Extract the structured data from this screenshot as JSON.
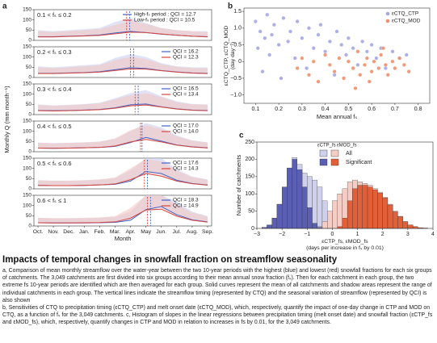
{
  "chart_data": [
    {
      "type": "line-panels",
      "label": "a",
      "ylabel": "Monthly Q (mm month⁻¹)",
      "xlabel": "Month",
      "categories": [
        "Oct.",
        "Nov.",
        "Dec.",
        "Jan.",
        "Feb.",
        "Mar.",
        "Apr.",
        "May",
        "Jun.",
        "Jul.",
        "Aug.",
        "Sep."
      ],
      "ylim": [
        0,
        150
      ],
      "yticks": [
        0,
        50,
        100,
        150
      ],
      "panels": [
        {
          "range": "0.1 < fₛ ≤ 0.2",
          "series": [
            {
              "label": "High-fₛ period : QCI = 12.7",
              "color": "#3f64c8",
              "band_color": "#c9d0ee",
              "values": [
                18,
                18,
                20,
                22,
                26,
                36,
                44,
                38,
                30,
                25,
                20,
                18
              ],
              "upper": [
                50,
                45,
                50,
                55,
                60,
                90,
                110,
                85,
                60,
                50,
                45,
                45
              ],
              "timing": 5.95
            },
            {
              "label": "Low-fₛ period : QCI = 10.5",
              "color": "#d6473f",
              "band_color": "#f3c6c2",
              "values": [
                17,
                17,
                19,
                21,
                24,
                32,
                40,
                38,
                31,
                25,
                20,
                17
              ],
              "upper": [
                45,
                40,
                45,
                50,
                55,
                75,
                95,
                80,
                60,
                50,
                45,
                40
              ],
              "timing": 5.75
            }
          ]
        },
        {
          "range": "0.2 < fₛ ≤ 0.3",
          "series": [
            {
              "label": "QCI = 16.2",
              "color": "#3f64c8",
              "band_color": "#c9d0ee",
              "values": [
                20,
                20,
                22,
                24,
                28,
                38,
                48,
                44,
                34,
                27,
                22,
                20
              ],
              "upper": [
                55,
                50,
                55,
                60,
                65,
                95,
                115,
                100,
                70,
                55,
                50,
                50
              ],
              "timing": 6.2
            },
            {
              "label": "QCI = 12.3",
              "color": "#d6473f",
              "band_color": "#f3c6c2",
              "values": [
                19,
                19,
                21,
                23,
                26,
                34,
                42,
                41,
                33,
                26,
                21,
                19
              ],
              "upper": [
                50,
                45,
                50,
                55,
                60,
                85,
                100,
                90,
                65,
                52,
                46,
                45
              ],
              "timing": 6.0
            }
          ]
        },
        {
          "range": "0.3 < fₛ ≤ 0.4",
          "series": [
            {
              "label": "QCI = 16.5",
              "color": "#3f64c8",
              "band_color": "#c9d0ee",
              "values": [
                20,
                19,
                20,
                22,
                25,
                33,
                48,
                52,
                38,
                28,
                22,
                20
              ],
              "upper": [
                50,
                45,
                48,
                52,
                58,
                80,
                105,
                120,
                90,
                65,
                52,
                50
              ],
              "timing": 6.5
            },
            {
              "label": "QCI = 13.4",
              "color": "#d6473f",
              "band_color": "#f3c6c2",
              "values": [
                19,
                18,
                19,
                21,
                24,
                31,
                43,
                47,
                37,
                27,
                21,
                19
              ],
              "upper": [
                48,
                43,
                46,
                50,
                55,
                75,
                95,
                105,
                85,
                60,
                50,
                48
              ],
              "timing": 6.3
            }
          ]
        },
        {
          "range": "0.4 < fₛ ≤ 0.5",
          "series": [
            {
              "label": "QCI = 17.0",
              "color": "#3f64c8",
              "band_color": "#c9d0ee",
              "values": [
                18,
                17,
                18,
                19,
                21,
                26,
                45,
                70,
                52,
                33,
                24,
                19
              ],
              "upper": [
                45,
                42,
                44,
                46,
                50,
                62,
                100,
                140,
                120,
                80,
                56,
                46
              ],
              "timing": 6.75
            },
            {
              "label": "QCI = 14.0",
              "color": "#d6473f",
              "band_color": "#f3c6c2",
              "values": [
                18,
                17,
                18,
                19,
                21,
                28,
                48,
                60,
                48,
                32,
                23,
                18
              ],
              "upper": [
                44,
                41,
                43,
                45,
                49,
                65,
                105,
                130,
                110,
                75,
                54,
                45
              ],
              "timing": 6.65
            }
          ]
        },
        {
          "range": "0.5 < fₛ ≤ 0.6",
          "series": [
            {
              "label": "QCI = 17.6",
              "color": "#3f64c8",
              "band_color": "#c9d0ee",
              "values": [
                17,
                16,
                16,
                17,
                19,
                22,
                38,
                85,
                75,
                42,
                26,
                19
              ],
              "upper": [
                42,
                40,
                40,
                42,
                46,
                52,
                90,
                150,
                150,
                95,
                60,
                46
              ],
              "timing": 7.1
            },
            {
              "label": "QCI = 14.3",
              "color": "#d6473f",
              "band_color": "#f3c6c2",
              "values": [
                17,
                16,
                16,
                17,
                19,
                24,
                45,
                75,
                62,
                38,
                25,
                18
              ],
              "upper": [
                42,
                40,
                40,
                42,
                46,
                56,
                100,
                145,
                135,
                88,
                58,
                44
              ],
              "timing": 6.9
            }
          ]
        },
        {
          "range": "0.6 < fₛ ≤ 1",
          "series": [
            {
              "label": "QCI = 18.3",
              "color": "#3f64c8",
              "band_color": "#c9d0ee",
              "values": [
                16,
                15,
                15,
                15,
                16,
                18,
                28,
                80,
                95,
                55,
                30,
                20
              ],
              "upper": [
                40,
                38,
                38,
                38,
                40,
                44,
                70,
                150,
                150,
                120,
                70,
                48
              ],
              "timing": 7.3
            },
            {
              "label": "QCI = 14.9",
              "color": "#d6473f",
              "band_color": "#f3c6c2",
              "values": [
                16,
                15,
                15,
                16,
                17,
                20,
                38,
                78,
                82,
                48,
                28,
                19
              ],
              "upper": [
                40,
                38,
                38,
                40,
                42,
                48,
                88,
                150,
                150,
                105,
                65,
                46
              ],
              "timing": 7.1
            }
          ]
        }
      ]
    },
    {
      "type": "scatter",
      "label": "b",
      "xlabel": "Mean annual fₛ",
      "ylabel": [
        "εCTQ_CTP, εCTQ_MOD",
        "(day day⁻¹)"
      ],
      "xlim": [
        0.05,
        0.85
      ],
      "xticks": [
        0.1,
        0.2,
        0.3,
        0.4,
        0.5,
        0.6,
        0.7,
        0.8
      ],
      "ylim": [
        -1.25,
        1.6
      ],
      "yticks": [
        1.5,
        {
          "value": 1,
          "label": "1.0"
        },
        0.5,
        0,
        {
          "value": -0.5,
          "label": "−0.5"
        },
        {
          "value": -1,
          "label": "−1.0"
        }
      ],
      "series": [
        {
          "name": "εCTQ_CTP",
          "color": "#a3a7e4",
          "x": [
            0.1,
            0.11,
            0.12,
            0.13,
            0.14,
            0.15,
            0.16,
            0.17,
            0.18,
            0.2,
            0.21,
            0.22,
            0.24,
            0.25,
            0.27,
            0.28,
            0.3,
            0.32,
            0.33,
            0.35,
            0.37,
            0.38,
            0.4,
            0.42,
            0.44,
            0.45,
            0.47,
            0.49,
            0.5,
            0.52,
            0.54,
            0.56,
            0.58,
            0.6,
            0.62,
            0.64,
            0.66,
            0.69,
            0.72,
            0.75
          ],
          "values": [
            1.2,
            0.4,
            0.9,
            -0.3,
            0.7,
            1.4,
            0.2,
            0.8,
            1.1,
            0.5,
            -0.5,
            1.3,
            0.6,
            0.9,
            0.1,
            1.2,
            0.7,
            -0.2,
            1.0,
            0.4,
            0.8,
            1.1,
            0.3,
            0.6,
            -0.4,
            0.9,
            0.5,
            0.2,
            0.7,
            0.4,
            -0.1,
            0.6,
            0.3,
            0.5,
            0.1,
            0.4,
            -0.2,
            0.3,
            0.1,
            0.2
          ]
        },
        {
          "name": "εCTQ_MOD",
          "color": "#f08f6c",
          "x": [
            0.28,
            0.3,
            0.33,
            0.35,
            0.37,
            0.4,
            0.42,
            0.44,
            0.46,
            0.48,
            0.5,
            0.52,
            0.54,
            0.55,
            0.57,
            0.58,
            0.6,
            0.61,
            0.63,
            0.64,
            0.66,
            0.67,
            0.69,
            0.7,
            0.72,
            0.74,
            0.76,
            0.65,
            0.59,
            0.53
          ],
          "values": [
            -0.2,
            0.1,
            -0.4,
            0.0,
            -0.6,
            0.2,
            -0.1,
            -0.3,
            0.1,
            -0.5,
            0.0,
            -0.2,
            0.3,
            -0.4,
            -0.1,
            0.1,
            -0.3,
            0.0,
            -0.2,
            0.2,
            -0.1,
            -0.4,
            0.0,
            -0.2,
            0.1,
            -0.1,
            -0.3,
            0.4,
            -0.6,
            -0.8
          ]
        }
      ]
    },
    {
      "type": "histogram",
      "label": "c",
      "ylabel": "Number of catchments",
      "xlabel": [
        "εCTP_fs, εMOD_fs",
        "(days per increase in fₛ by 0.01)"
      ],
      "xlim": [
        -3,
        4
      ],
      "xticks": [
        {
          "value": -3,
          "label": "−3"
        },
        {
          "value": -2,
          "label": "−2"
        },
        {
          "value": -1,
          "label": "−1"
        },
        0,
        1,
        2,
        3,
        4
      ],
      "ylim": [
        0,
        250
      ],
      "yticks": [
        0,
        50,
        100,
        150,
        200,
        250
      ],
      "legend": {
        "columns": [
          "εCTP_fs",
          "εMOD_fs"
        ],
        "rows": [
          "All",
          "Significant"
        ]
      },
      "bins": [
        -3,
        -2.8,
        -2.6,
        -2.4,
        -2.2,
        -2,
        -1.8,
        -1.6,
        -1.4,
        -1.2,
        -1,
        -0.8,
        -0.6,
        -0.4,
        -0.2,
        0,
        0.2,
        0.4,
        0.6,
        0.8,
        1,
        1.2,
        1.4,
        1.6,
        1.8,
        2,
        2.2,
        2.4,
        2.6,
        2.8,
        3,
        3.2,
        3.4,
        3.6,
        3.8,
        4
      ],
      "series": [
        {
          "color": "#cfd1ec",
          "values": [
            0,
            3,
            10,
            30,
            70,
            120,
            175,
            205,
            185,
            160,
            150,
            140,
            120,
            80,
            40,
            10,
            0,
            0,
            0,
            0,
            0,
            0,
            0,
            0,
            0,
            0,
            0,
            0,
            0,
            0,
            0,
            0,
            0,
            0,
            0
          ]
        },
        {
          "color": "#f6cdc5",
          "values": [
            0,
            0,
            0,
            0,
            0,
            0,
            0,
            0,
            0,
            0,
            0,
            0,
            5,
            20,
            50,
            80,
            100,
            115,
            135,
            140,
            135,
            130,
            125,
            115,
            105,
            90,
            70,
            50,
            35,
            20,
            10,
            5,
            2,
            1,
            0
          ]
        },
        {
          "color": "#5b5fb3",
          "values": [
            0,
            3,
            10,
            30,
            70,
            120,
            175,
            200,
            170,
            120,
            60,
            15,
            3,
            0,
            0,
            0,
            0,
            0,
            0,
            0,
            0,
            0,
            0,
            0,
            0,
            0,
            0,
            0,
            0,
            0,
            0,
            0,
            0,
            0,
            0
          ]
        },
        {
          "color": "#e35f38",
          "values": [
            0,
            0,
            0,
            0,
            0,
            0,
            0,
            0,
            0,
            0,
            0,
            0,
            0,
            0,
            0,
            0,
            5,
            30,
            80,
            115,
            125,
            125,
            120,
            112,
            102,
            88,
            68,
            48,
            34,
            19,
            10,
            5,
            2,
            1,
            0
          ]
        }
      ]
    }
  ],
  "caption": {
    "title": "Impacts of temporal changes in snowfall fraction on streamflow seasonality",
    "paragraphs": [
      "a, Comparison of mean monthly streamflow over the water-year between the two 10-year periods with the highest (blue) and lowest (red) snowfall fractions for each six groups of catchments. The 3,049 catchments are first divided into six groups according to their mean annual snow fraction (fₛ). Then for each catchment in each group, the two extreme fs 10-year periods are identified which are then averaged for each group. Solid curves represent the mean of all catchments and shadow areas represent the range of individual catchments in each group. The vertical lines indicate the streamflow timing (represented by CTQ) and the seasonal variation of streamflow (represented by QCI) is also shown",
      "b, Sensitivities of CTQ to precipitation timing (εCTQ_CTP) and melt onset date (εCTQ_MOD), which, respectively, quantify the impact of one-day change in CTP and MOD on CTQ, as a function of fₛ for the 3,049 catchments. c, Histogram of slopes in the linear regressions between precipitation timing (melt onset date) and snowfall fraction (εCTP_fs and εMOD_fs), which, respectively, quantify changes in CTP and MOD in relation to increases in fs by 0.01, for the 3,049 catchments."
    ]
  }
}
